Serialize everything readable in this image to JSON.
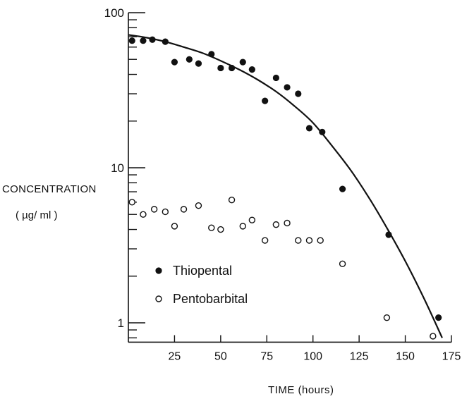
{
  "chart_data": {
    "type": "scatter",
    "title": "",
    "xlabel": "TIME (hours)",
    "ylabel_line1": "CONCENTRATION",
    "ylabel_line2": "( µg/ ml )",
    "xlim": [
      0,
      175
    ],
    "ylim": [
      0.75,
      100
    ],
    "y_scale": "log",
    "x_ticks": [
      "25",
      "50",
      "75",
      "100",
      "125",
      "150",
      "175"
    ],
    "y_ticks": [
      "1",
      "10",
      "100"
    ],
    "grid": false,
    "legend": "inside, lower-left",
    "series": [
      {
        "name": "Thiopental",
        "marker": "filled-circle",
        "x": [
          2,
          8,
          13,
          20,
          25,
          33,
          38,
          45,
          50,
          56,
          62,
          67,
          74,
          80,
          86,
          92,
          98,
          105,
          116,
          141,
          168
        ],
        "y": [
          66,
          66,
          67,
          65,
          48,
          50,
          47,
          54,
          44,
          44,
          48,
          43,
          27,
          38,
          33,
          30,
          18,
          17,
          7.3,
          3.7,
          1.08
        ]
      },
      {
        "name": "Pentobarbital",
        "marker": "open-circle",
        "x": [
          2,
          8,
          14,
          20,
          25,
          30,
          38,
          45,
          50,
          56,
          62,
          67,
          74,
          80,
          86,
          92,
          98,
          104,
          116,
          140,
          165
        ],
        "y": [
          6.0,
          5.0,
          5.4,
          5.2,
          4.2,
          5.4,
          5.7,
          4.1,
          4.0,
          6.2,
          4.2,
          4.6,
          3.4,
          4.3,
          4.4,
          3.4,
          3.4,
          3.4,
          2.4,
          1.08,
          0.82
        ]
      }
    ],
    "fit_curve": {
      "series": "Thiopental",
      "x": [
        0,
        10,
        20,
        30,
        40,
        50,
        60,
        70,
        80,
        90,
        100,
        110,
        120,
        130,
        140,
        150,
        160,
        170
      ],
      "y": [
        72,
        69,
        65,
        60,
        55,
        49,
        43,
        37,
        31,
        25,
        19.5,
        14,
        9.8,
        6.5,
        4.1,
        2.5,
        1.45,
        0.8
      ]
    }
  },
  "colors": {
    "ink": "#111111",
    "background": "#ffffff"
  }
}
